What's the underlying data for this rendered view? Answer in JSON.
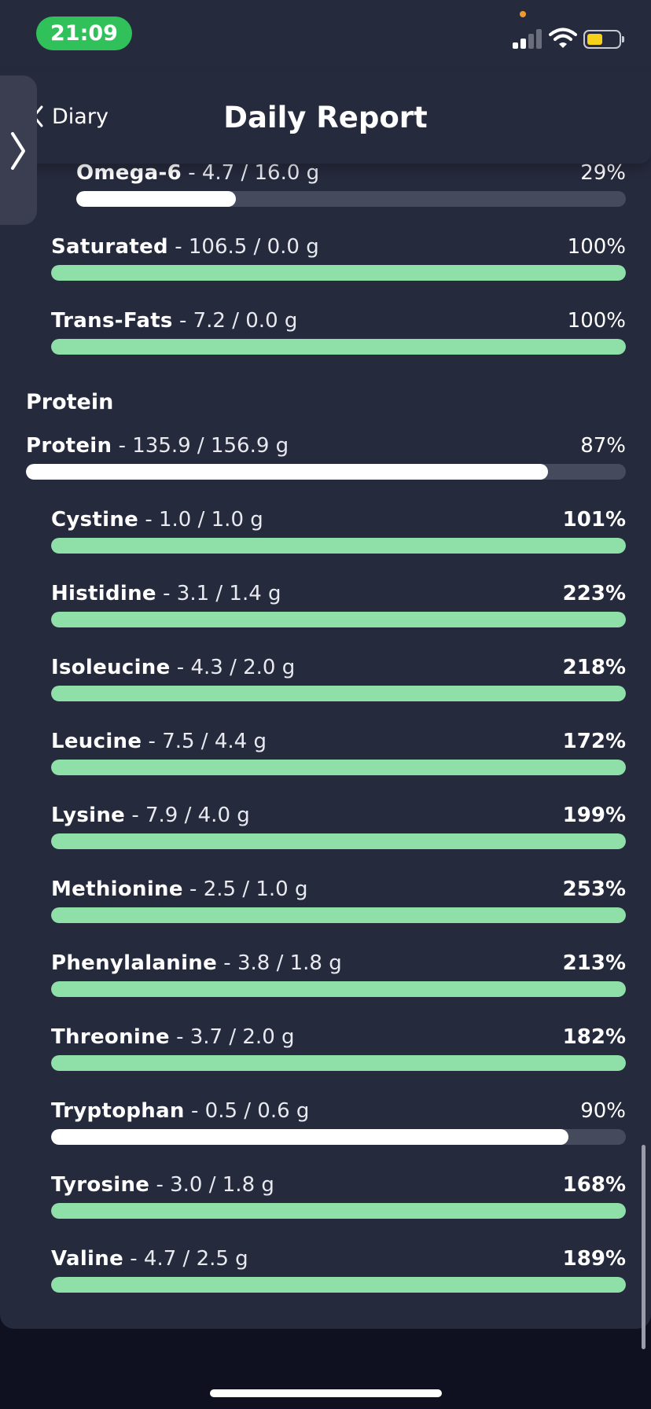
{
  "status_bar": {
    "time": "21:09"
  },
  "nav": {
    "back_label": "Diary",
    "title": "Daily Report"
  },
  "colors": {
    "over_target": "#8ee0a8",
    "under_target": "#ffffff",
    "track": "#454a5d",
    "card": "#262a3d"
  },
  "fat_rows": [
    {
      "name": "Omega-6",
      "amount": " - 4.7 / 16.0 g",
      "percent": "29%",
      "fill": 0.29,
      "complete": false
    },
    {
      "name": "Saturated",
      "amount": " - 106.5 / 0.0 g",
      "percent": "100%",
      "fill": 1.0,
      "complete": true
    },
    {
      "name": "Trans-Fats",
      "amount": " - 7.2 / 0.0 g",
      "percent": "100%",
      "fill": 1.0,
      "complete": true
    }
  ],
  "protein_section": {
    "title": "Protein",
    "total": {
      "name": "Protein",
      "amount": " - 135.9 / 156.9 g",
      "percent": "87%",
      "fill": 0.87,
      "complete": false
    },
    "rows": [
      {
        "name": "Cystine",
        "amount": " - 1.0 / 1.0 g",
        "percent": "101%",
        "fill": 1.0,
        "complete": true
      },
      {
        "name": "Histidine",
        "amount": " - 3.1 / 1.4 g",
        "percent": "223%",
        "fill": 1.0,
        "complete": true
      },
      {
        "name": "Isoleucine",
        "amount": " - 4.3 / 2.0 g",
        "percent": "218%",
        "fill": 1.0,
        "complete": true
      },
      {
        "name": "Leucine",
        "amount": " - 7.5 / 4.4 g",
        "percent": "172%",
        "fill": 1.0,
        "complete": true
      },
      {
        "name": "Lysine",
        "amount": " - 7.9 / 4.0 g",
        "percent": "199%",
        "fill": 1.0,
        "complete": true
      },
      {
        "name": "Methionine",
        "amount": " - 2.5 / 1.0 g",
        "percent": "253%",
        "fill": 1.0,
        "complete": true
      },
      {
        "name": "Phenylalanine",
        "amount": " - 3.8 / 1.8 g",
        "percent": "213%",
        "fill": 1.0,
        "complete": true
      },
      {
        "name": "Threonine",
        "amount": " - 3.7 / 2.0 g",
        "percent": "182%",
        "fill": 1.0,
        "complete": true
      },
      {
        "name": "Tryptophan",
        "amount": " - 0.5 / 0.6 g",
        "percent": "90%",
        "fill": 0.9,
        "complete": false
      },
      {
        "name": "Tyrosine",
        "amount": " - 3.0 / 1.8 g",
        "percent": "168%",
        "fill": 1.0,
        "complete": true
      },
      {
        "name": "Valine",
        "amount": " - 4.7 / 2.5 g",
        "percent": "189%",
        "fill": 1.0,
        "complete": true
      }
    ]
  }
}
